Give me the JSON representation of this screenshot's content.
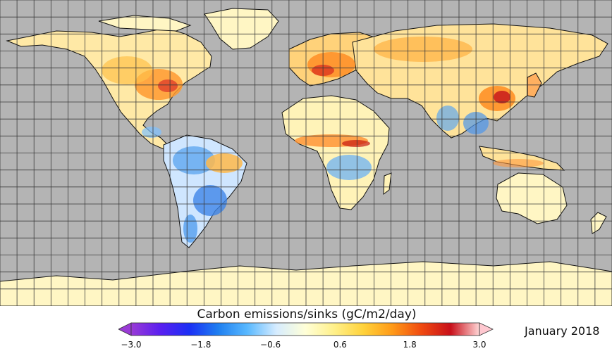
{
  "map": {
    "background_color": "#b4b4b4",
    "land_base_color": "#fff6c4",
    "grid_color": "#3a3a3a"
  },
  "colorbar": {
    "title": "Carbon emissions/sinks (gC/m2/day)",
    "min": -3.0,
    "max": 3.0,
    "ticks": [
      "−3.0",
      "−1.8",
      "−0.6",
      "0.6",
      "1.8",
      "3.0"
    ],
    "colors": [
      "#9a3bd6",
      "#5a1ff0",
      "#1b2ff5",
      "#1f7ff0",
      "#58b8ff",
      "#d6ecff",
      "#ffffd8",
      "#fff08a",
      "#ffd23a",
      "#ff9a18",
      "#f04a10",
      "#c8101a",
      "#ffd6d6"
    ]
  },
  "date": "January 2018"
}
